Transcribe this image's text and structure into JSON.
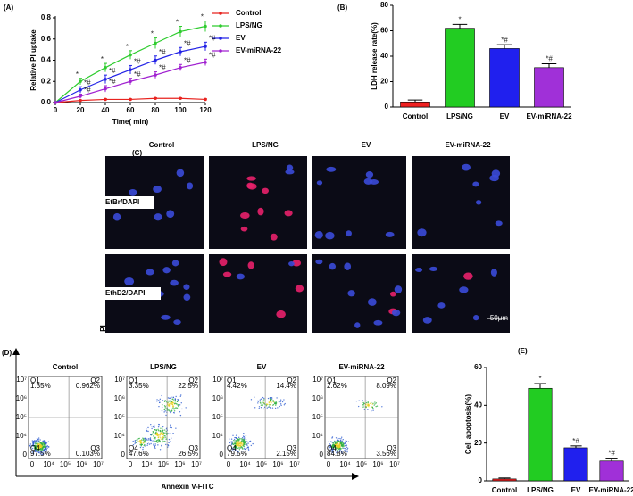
{
  "chart_data": [
    {
      "type": "line",
      "panel": "(A)",
      "xlabel": "Time( min)",
      "ylabel": "Relative PI uptake",
      "x": [
        0,
        20,
        40,
        60,
        80,
        100,
        120
      ],
      "xlim": [
        0,
        120
      ],
      "xticks": [
        0,
        20,
        40,
        60,
        80,
        100,
        120
      ],
      "ylim": [
        0,
        0.8
      ],
      "yticks": [
        {
          "value": 0,
          "label": "0.0"
        },
        0.2,
        0.4,
        0.6,
        0.8
      ],
      "legend": "right",
      "series": [
        {
          "name": "Control",
          "color": "#e8231f",
          "values": [
            0,
            0.02,
            0.03,
            0.03,
            0.04,
            0.04,
            0.03
          ],
          "errors": [
            0,
            0.005,
            0.005,
            0.005,
            0.005,
            0.005,
            0.005
          ]
        },
        {
          "name": "LPS/NG",
          "color": "#2ecc2e",
          "values": [
            0,
            0.2,
            0.33,
            0.45,
            0.56,
            0.67,
            0.72
          ],
          "errors": [
            0,
            0.03,
            0.04,
            0.04,
            0.05,
            0.05,
            0.05
          ]
        },
        {
          "name": "EV",
          "color": "#2323e6",
          "values": [
            0,
            0.12,
            0.22,
            0.31,
            0.4,
            0.48,
            0.53
          ],
          "errors": [
            0,
            0.03,
            0.04,
            0.04,
            0.04,
            0.04,
            0.04
          ]
        },
        {
          "name": "EV-miRNA-22",
          "color": "#a020d0",
          "values": [
            0,
            0.06,
            0.13,
            0.2,
            0.26,
            0.33,
            0.38
          ],
          "errors": [
            0,
            0.02,
            0.03,
            0.03,
            0.03,
            0.03,
            0.03
          ]
        }
      ],
      "annotations": [
        {
          "series": 1,
          "text": "*"
        },
        {
          "series": 2,
          "text": "*#"
        },
        {
          "series": 3,
          "text": "*#"
        }
      ]
    },
    {
      "type": "bar",
      "panel": "(B)",
      "ylabel": "LDH release rate(%)",
      "categories": [
        "Control",
        "LPS/NG",
        "EV",
        "EV-miRNA-22"
      ],
      "values": [
        4,
        62,
        46,
        31
      ],
      "errors": [
        1.5,
        3,
        3,
        3
      ],
      "colors": [
        "#ee2020",
        "#22cc22",
        "#2020ee",
        "#a030d8"
      ],
      "annotations": [
        null,
        "*",
        "*#",
        "*#"
      ],
      "ylim": [
        0,
        80
      ],
      "yticks": [
        0,
        20,
        40,
        60,
        80
      ]
    },
    {
      "type": "bar",
      "panel": "(E)",
      "ylabel": "Cell apoptosis(%)",
      "categories": [
        "Control",
        "LPS/NG",
        "EV",
        "EV-miRNA-22"
      ],
      "values": [
        1,
        49,
        17.5,
        10.5
      ],
      "errors": [
        0.5,
        2.5,
        1,
        1.5
      ],
      "colors": [
        "#ee2020",
        "#22cc22",
        "#2020ee",
        "#a030d8"
      ],
      "annotations": [
        null,
        "*",
        "*#",
        "*#"
      ],
      "ylim": [
        0,
        60
      ],
      "yticks": [
        0,
        20,
        40,
        60
      ]
    }
  ],
  "micrographs": {
    "panel": "(C)",
    "columns": [
      "Control",
      "LPS/NG",
      "EV",
      "EV-miRNA-22"
    ],
    "rows": [
      "EtBr/DAPI",
      "EthD2/DAPI"
    ],
    "scale_bar": "50μm"
  },
  "flow_cytometry": {
    "panel": "(D)",
    "xlabel": "Annexin V-FITC",
    "ylabel": "PI",
    "axis_ticks": [
      "0",
      "10⁴",
      "10⁵",
      "10⁶",
      "10⁷"
    ],
    "quadrants": [
      "Q1",
      "Q2",
      "Q3",
      "Q4"
    ],
    "plots": [
      {
        "title": "Control",
        "percentages": [
          "1.35%",
          "0.962%",
          "0.103%",
          "97.5%"
        ]
      },
      {
        "title": "LPS/NG",
        "percentages": [
          "3.35%",
          "22.5%",
          "26.5%",
          "47.6%"
        ]
      },
      {
        "title": "EV",
        "percentages": [
          "4.42%",
          "14.4%",
          "2.15%",
          "79.5%"
        ]
      },
      {
        "title": "EV-miRNA-22",
        "percentages": [
          "2.62%",
          "8.09%",
          "3.56%",
          "84.8%"
        ]
      }
    ]
  }
}
